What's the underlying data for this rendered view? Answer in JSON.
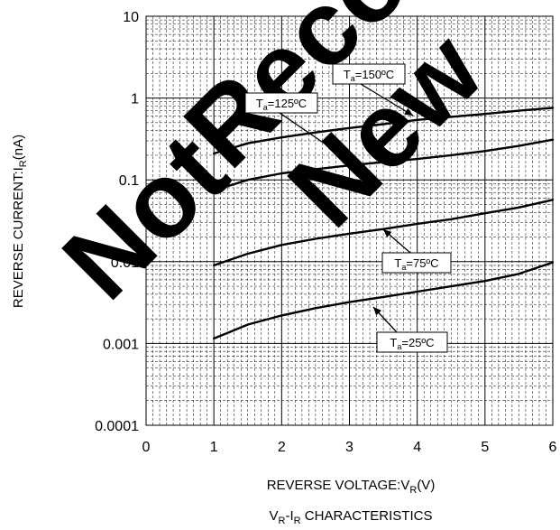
{
  "chart_data": {
    "type": "line",
    "title": "V_R-I_R CHARACTERISTICS",
    "title_parts": {
      "v": "V",
      "v_sub": "R",
      "dash": "-I",
      "i_sub": "R",
      "rest": " CHARACTERISTICS"
    },
    "xlabel": "REVERSE VOLTAGE:V_R(V)",
    "xlabel_parts": {
      "main": "REVERSE VOLTAGE:V",
      "sub": "R",
      "unit": "(V)"
    },
    "ylabel": "REVERSE CURRENT:I_R(nA)",
    "ylabel_parts": {
      "main": "REVERSE CURRENT:I",
      "sub": "R",
      "unit": "(nA)"
    },
    "x_ticks": [
      "0",
      "1",
      "2",
      "3",
      "4",
      "5",
      "6"
    ],
    "y_ticks": [
      "0.0001",
      "0.001",
      "0.01",
      "0.1",
      "1",
      "10"
    ],
    "xlim": [
      0,
      6
    ],
    "ylim": [
      0.0001,
      10
    ],
    "y_scale": "log",
    "grid": true,
    "series": [
      {
        "name": "Ta=150°C",
        "label_main": "T",
        "label_sub": "a",
        "label_rest": "=150ºC",
        "x": [
          1,
          1.5,
          2,
          2.5,
          3,
          3.5,
          4,
          4.5,
          5,
          5.5,
          6
        ],
        "y": [
          0.21,
          0.28,
          0.33,
          0.38,
          0.43,
          0.48,
          0.54,
          0.59,
          0.64,
          0.7,
          0.76
        ]
      },
      {
        "name": "Ta=125°C",
        "label_main": "T",
        "label_sub": "a",
        "label_rest": "=125ºC",
        "x": [
          1,
          1.5,
          2,
          2.5,
          3,
          3.5,
          4,
          4.5,
          5,
          5.5,
          6
        ],
        "y": [
          0.074,
          0.1,
          0.12,
          0.135,
          0.15,
          0.165,
          0.18,
          0.2,
          0.225,
          0.26,
          0.31
        ]
      },
      {
        "name": "Ta=75°C",
        "label_main": "T",
        "label_sub": "a",
        "label_rest": "=75ºC",
        "x": [
          1,
          1.5,
          2,
          2.5,
          3,
          3.5,
          4,
          4.5,
          5,
          5.5,
          6
        ],
        "y": [
          0.009,
          0.0125,
          0.016,
          0.019,
          0.022,
          0.025,
          0.029,
          0.033,
          0.039,
          0.046,
          0.057
        ]
      },
      {
        "name": "Ta=25°C",
        "label_main": "T",
        "label_sub": "a",
        "label_rest": "=25ºC",
        "x": [
          1,
          1.5,
          2,
          2.5,
          3,
          3.5,
          4,
          4.5,
          5,
          5.5,
          6
        ],
        "y": [
          0.00115,
          0.0017,
          0.0022,
          0.0027,
          0.0032,
          0.0037,
          0.0043,
          0.005,
          0.0058,
          0.0071,
          0.0098
        ]
      }
    ],
    "watermark": "Not Recommended for New Designs",
    "colors": {
      "curve": "#000000",
      "grid_minor": "#000000",
      "grid_major": "#000000",
      "watermark": "#cfcfcf"
    }
  }
}
